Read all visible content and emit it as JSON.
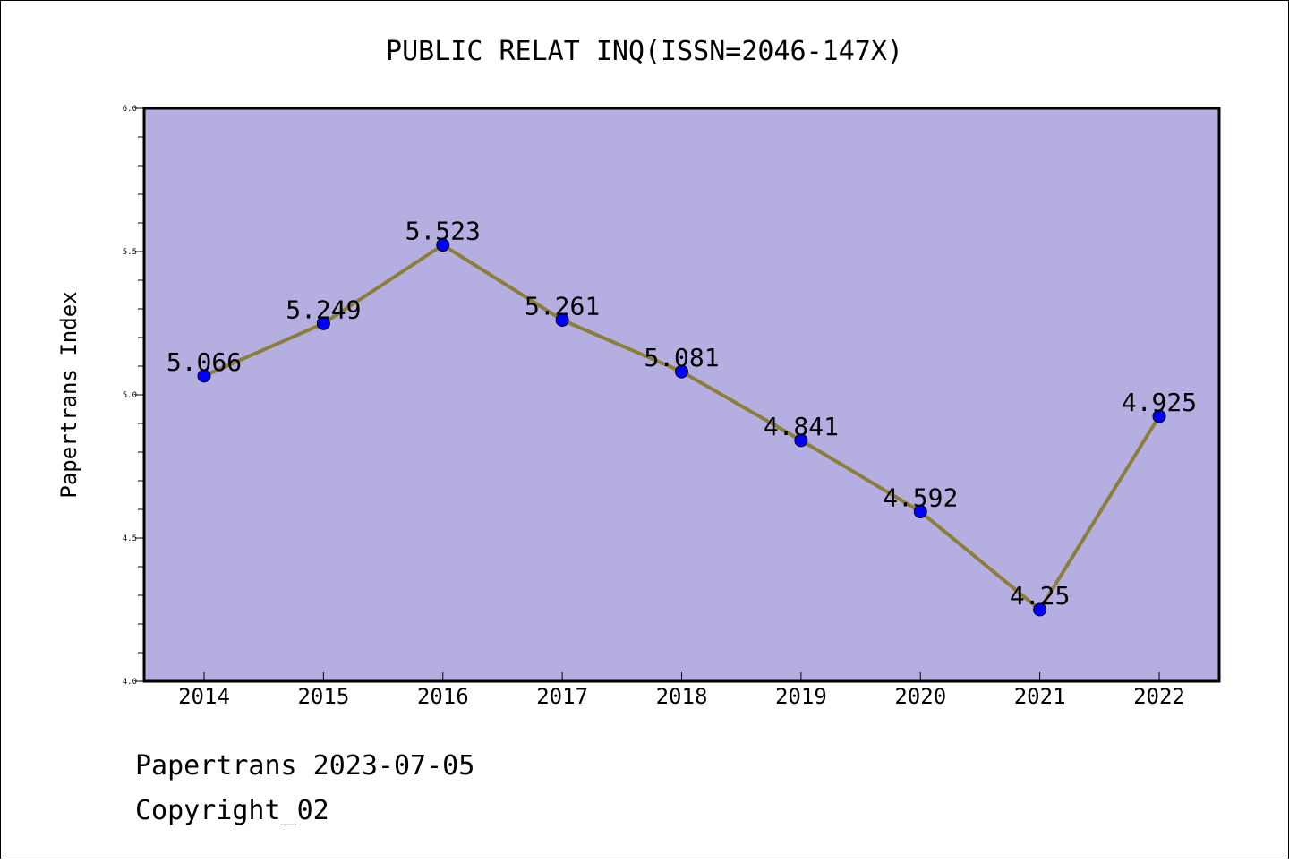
{
  "chart_data": {
    "type": "line",
    "title": "PUBLIC RELAT INQ(ISSN=2046-147X)",
    "xlabel": "",
    "ylabel": "Papertrans Index",
    "categories": [
      "2014",
      "2015",
      "2016",
      "2017",
      "2018",
      "2019",
      "2020",
      "2021",
      "2022"
    ],
    "series": [
      {
        "values": [
          5.066,
          5.249,
          5.523,
          5.261,
          5.081,
          4.841,
          4.592,
          4.25,
          4.925
        ],
        "labels": [
          "5.066",
          "5.249",
          "5.523",
          "5.261",
          "5.081",
          "4.841",
          "4.592",
          "4.25",
          "4.925"
        ]
      }
    ],
    "ylim": [
      4.0,
      6.0
    ],
    "yticks": [
      "4.0",
      "4.5",
      "5.0",
      "5.5",
      "6.0"
    ],
    "grid": false,
    "colors": {
      "plot_background": "#b5aee1",
      "line": "#8b7d3a",
      "marker": "#0000ff"
    }
  },
  "footer": {
    "line1": "Papertrans 2023-07-05",
    "line2": "Copyright_02"
  }
}
